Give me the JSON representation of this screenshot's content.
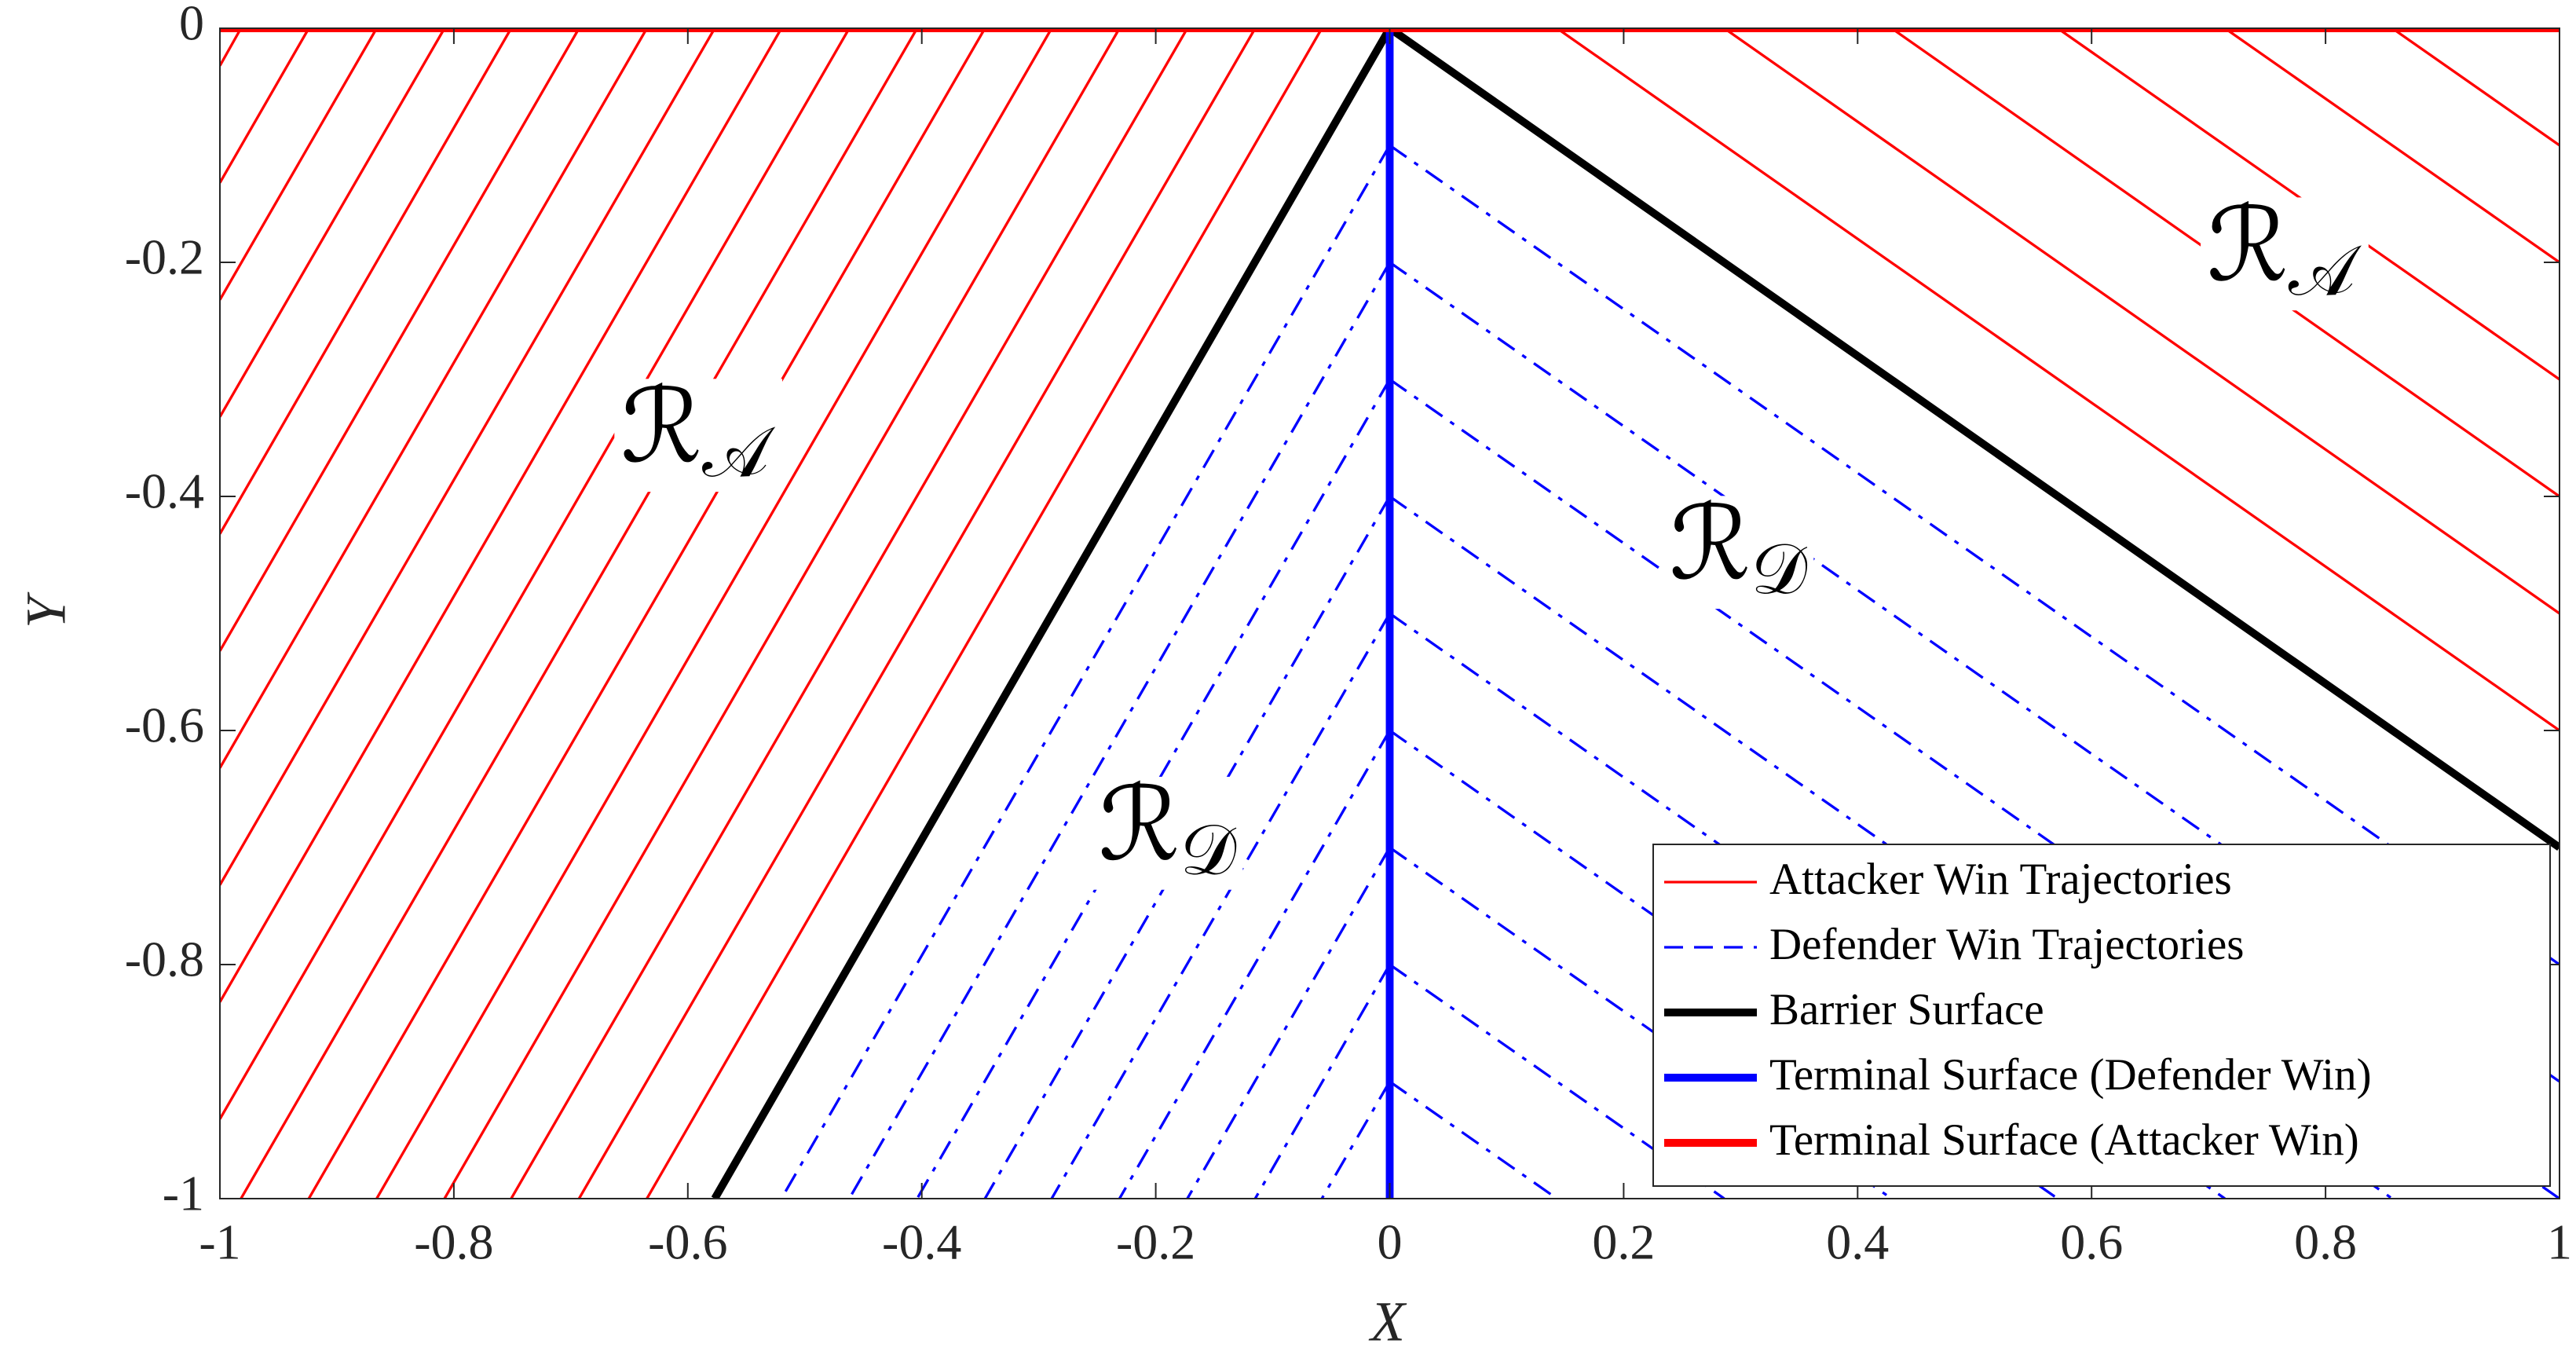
{
  "chart_data": {
    "type": "line",
    "xlabel": "X",
    "ylabel": "Y",
    "xlim": [
      -1,
      1
    ],
    "ylim": [
      -1,
      0
    ],
    "xticks": [
      -1,
      -0.8,
      -0.6,
      -0.4,
      -0.2,
      0,
      0.2,
      0.4,
      0.6,
      0.8,
      1
    ],
    "yticks": [
      -1,
      -0.8,
      -0.6,
      -0.4,
      -0.2,
      0
    ],
    "grid": false,
    "legend_loc": "lower right",
    "series": [
      {
        "name": "Attacker Win Trajectories",
        "color": "#ff0000",
        "linestyle": "-",
        "linewidth": 1,
        "x": [
          -0.058,
          -0.635,
          null,
          -0.115,
          -0.693,
          null,
          -0.173,
          -0.751,
          null,
          -0.231,
          -0.808,
          null,
          -0.289,
          -0.866,
          null,
          -0.346,
          -0.924,
          null,
          -0.404,
          -0.982,
          null,
          -0.462,
          -1,
          null,
          -0.52,
          -1,
          null,
          -0.577,
          -1,
          null,
          -0.635,
          -1,
          null,
          -0.693,
          -1,
          null,
          -0.751,
          -1,
          null,
          -0.808,
          -1,
          null,
          -0.866,
          -1,
          null,
          -0.924,
          -1,
          null,
          -0.982,
          -1,
          null,
          0.143,
          1,
          null,
          0.286,
          1,
          null,
          0.429,
          1,
          null,
          0.571,
          1,
          null,
          0.714,
          1,
          null,
          0.857,
          1
        ],
        "values": [
          0,
          -1,
          null,
          0,
          -1,
          null,
          0,
          -1,
          null,
          0,
          -1,
          null,
          0,
          -1,
          null,
          0,
          -1,
          null,
          0,
          -1,
          null,
          0,
          -0.932,
          null,
          0,
          -0.832,
          null,
          0,
          -0.732,
          null,
          0,
          -0.632,
          null,
          0,
          -0.532,
          null,
          0,
          -0.432,
          null,
          0,
          -0.332,
          null,
          0,
          -0.232,
          null,
          0,
          -0.132,
          null,
          0,
          -0.032,
          null,
          0,
          -0.6,
          null,
          0,
          -0.5,
          null,
          0,
          -0.4,
          null,
          0,
          -0.3,
          null,
          0,
          -0.2,
          null,
          0,
          -0.1
        ]
      },
      {
        "name": "Defender Win Trajectories",
        "color": "#0000ff",
        "linestyle": "-.",
        "linewidth": 1,
        "x": [
          0,
          -0.52,
          null,
          0,
          -0.462,
          null,
          0,
          -0.404,
          null,
          0,
          -0.346,
          null,
          0,
          -0.289,
          null,
          0,
          -0.231,
          null,
          0,
          -0.173,
          null,
          0,
          -0.115,
          null,
          0,
          -0.058,
          null,
          0,
          1,
          null,
          0,
          1,
          null,
          0,
          1,
          null,
          0,
          0.857,
          null,
          0,
          0.714,
          null,
          0,
          0.571,
          null,
          0,
          0.429,
          null,
          0,
          0.286,
          null,
          0,
          0.143
        ],
        "values": [
          -0.1,
          -1,
          null,
          -0.2,
          -1,
          null,
          -0.3,
          -1,
          null,
          -0.4,
          -1,
          null,
          -0.5,
          -1,
          null,
          -0.6,
          -1,
          null,
          -0.7,
          -1,
          null,
          -0.8,
          -1,
          null,
          -0.9,
          -1,
          null,
          -0.1,
          -0.8,
          null,
          -0.2,
          -0.9,
          null,
          -0.3,
          -1,
          null,
          -0.4,
          -1,
          null,
          -0.5,
          -1,
          null,
          -0.6,
          -1,
          null,
          -0.7,
          -1,
          null,
          -0.8,
          -1,
          null,
          -0.9,
          -1
        ]
      },
      {
        "name": "Barrier Surface",
        "color": "#000000",
        "linestyle": "-",
        "linewidth": 3,
        "x": [
          -0.577,
          0,
          1
        ],
        "values": [
          -1,
          0,
          -0.7
        ]
      },
      {
        "name": "Terminal Surface (Defender Win)",
        "color": "#0000ff",
        "linestyle": "-",
        "linewidth": 3,
        "x": [
          0,
          0
        ],
        "values": [
          0,
          -1
        ]
      },
      {
        "name": "Terminal Surface (Attacker Win)",
        "color": "#ff0000",
        "linestyle": "-",
        "linewidth": 3,
        "x": [
          -1,
          1
        ],
        "values": [
          0,
          0
        ]
      }
    ],
    "annotations": [
      {
        "main": "ℛ",
        "sub": "𝒜"
      },
      {
        "main": "ℛ",
        "sub": "𝒜"
      },
      {
        "main": "ℛ",
        "sub": "𝒟"
      },
      {
        "main": "ℛ",
        "sub": "𝒟"
      }
    ]
  }
}
